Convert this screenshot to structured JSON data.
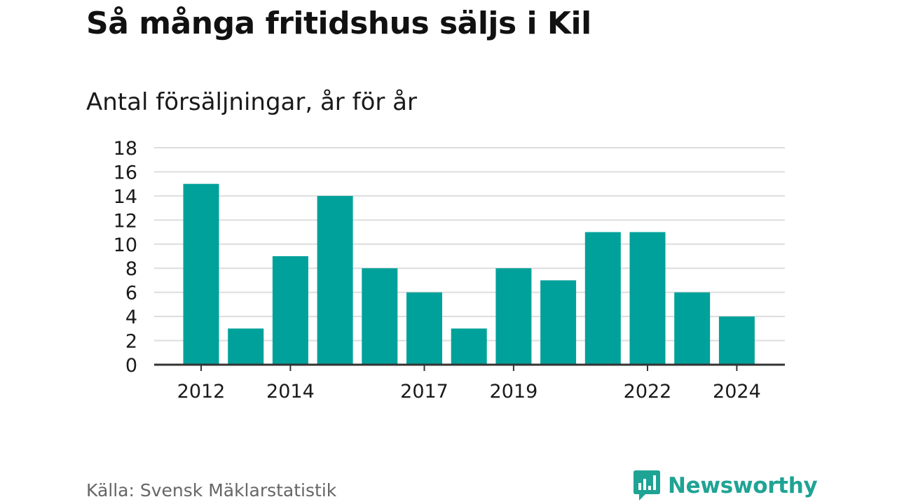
{
  "header": {
    "title": "Så många fritidshus säljs i Kil",
    "subtitle": "Antal försäljningar, år för år"
  },
  "footer": {
    "source": "Källa: Svensk Mäklarstatistik",
    "brand": "Newsworthy",
    "brand_icon": "bar-chart-speech-bubble-icon"
  },
  "colors": {
    "bar": "#00a19a",
    "grid": "#dddddd",
    "axis": "#333333",
    "brand": "#1fa394"
  },
  "chart_data": {
    "type": "bar",
    "title": "Så många fritidshus säljs i Kil",
    "subtitle": "Antal försäljningar, år för år",
    "categories": [
      "2012",
      "2013",
      "2014",
      "2015",
      "2016",
      "2017",
      "2018",
      "2019",
      "2020",
      "2021",
      "2022",
      "2023",
      "2024"
    ],
    "values": [
      15,
      3,
      9,
      14,
      8,
      6,
      3,
      8,
      7,
      11,
      11,
      6,
      4
    ],
    "x_tick_labels": [
      "2012",
      "2014",
      "2017",
      "2019",
      "2022",
      "2024"
    ],
    "y_ticks": [
      0,
      2,
      4,
      6,
      8,
      10,
      12,
      14,
      16,
      18
    ],
    "ylim": [
      0,
      18
    ],
    "xlabel": "",
    "ylabel": "",
    "grid": true
  }
}
